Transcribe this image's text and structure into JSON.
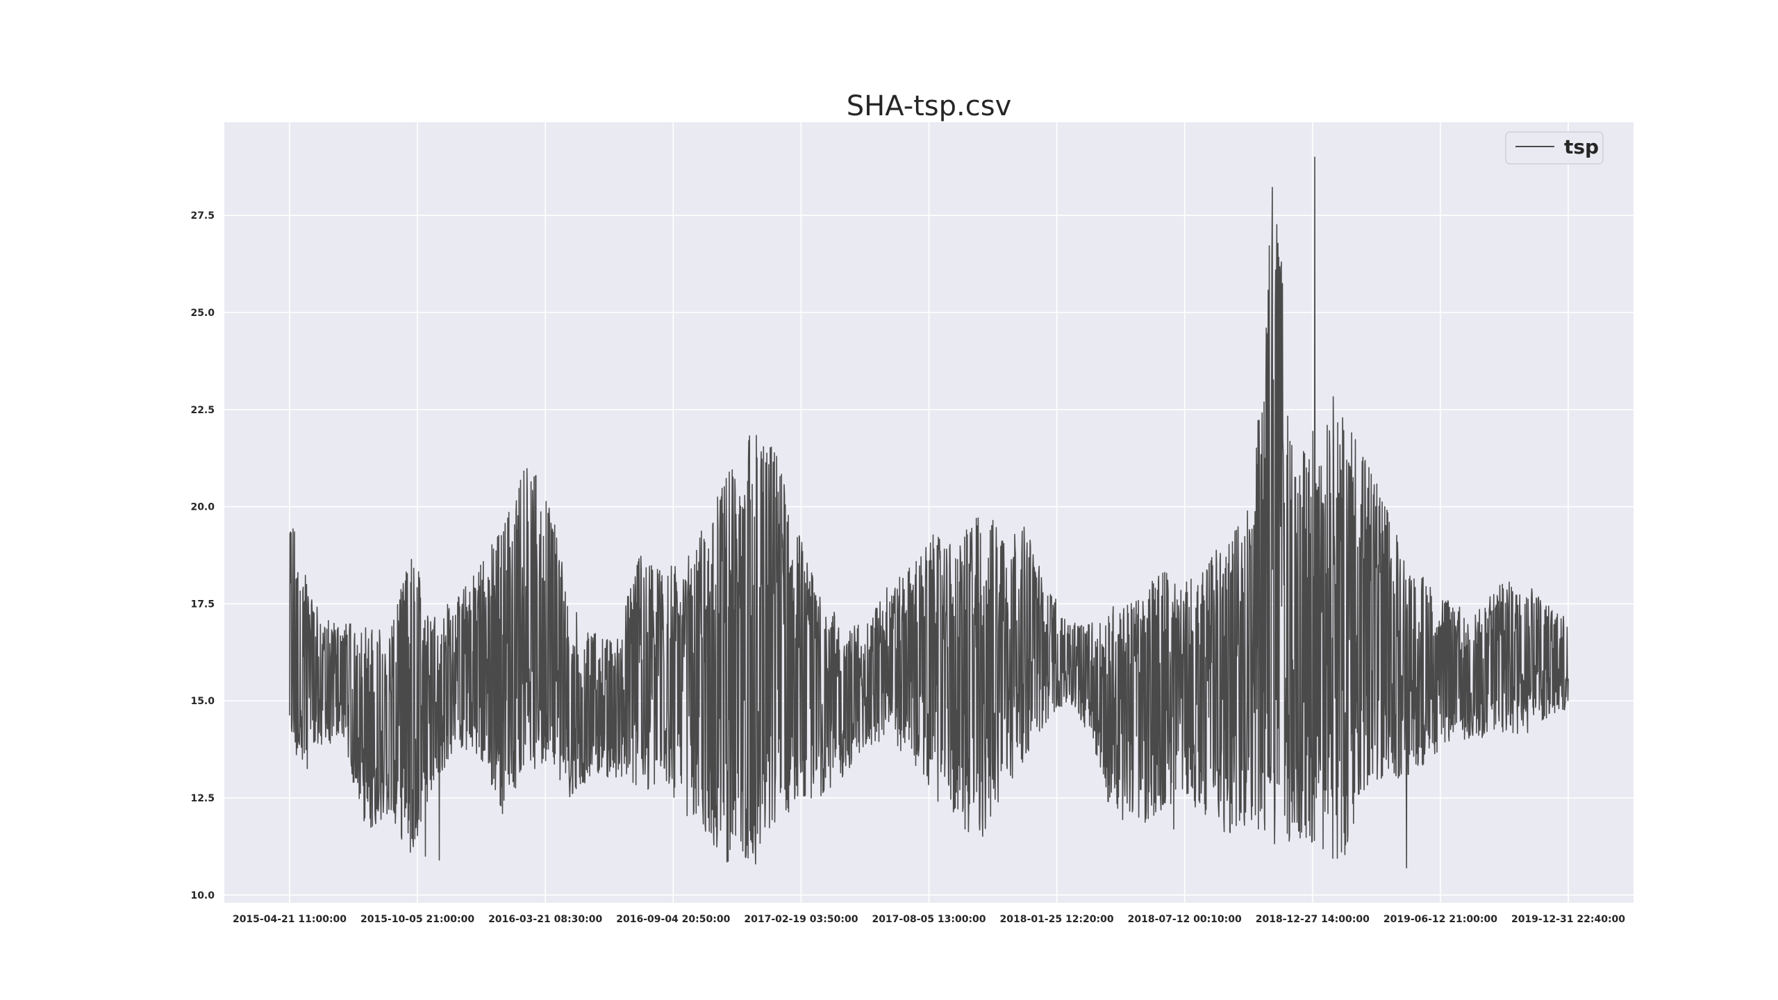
{
  "chart_data": {
    "type": "line",
    "title": "SHA-tsp.csv",
    "xlabel": "",
    "ylabel": "",
    "ylim": [
      9.8,
      29.9
    ],
    "yticks": [
      10.0,
      12.5,
      15.0,
      17.5,
      20.0,
      22.5,
      25.0,
      27.5
    ],
    "ytick_labels": [
      "10.0",
      "12.5",
      "15.0",
      "17.5",
      "20.0",
      "22.5",
      "25.0",
      "27.5"
    ],
    "xtick_labels": [
      "2015-04-21 11:00:00",
      "2015-10-05 21:00:00",
      "2016-03-21 08:30:00",
      "2016-09-04 20:50:00",
      "2017-02-19 03:50:00",
      "2017-08-05 13:00:00",
      "2018-01-25 12:20:00",
      "2018-07-12 00:10:00",
      "2018-12-27 14:00:00",
      "2019-06-12 21:00:00",
      "2019-12-31 22:40:00"
    ],
    "grid": true,
    "legend_position": "top-right",
    "series": [
      {
        "name": "tsp",
        "color": "#4a4a4a",
        "x_start": "2015-04-21",
        "x_end": "2019-12-31",
        "envelope": {
          "x": [
            "2015-04-21",
            "2015-05-10",
            "2015-06-01",
            "2015-07-01",
            "2015-08-01",
            "2015-09-01",
            "2015-10-01",
            "2015-11-01",
            "2015-12-01",
            "2016-01-01",
            "2016-02-01",
            "2016-03-01",
            "2016-04-01",
            "2016-05-01",
            "2016-06-01",
            "2016-07-01",
            "2016-08-01",
            "2016-09-01",
            "2016-10-01",
            "2016-11-01",
            "2016-12-01",
            "2017-01-01",
            "2017-02-01",
            "2017-03-01",
            "2017-04-01",
            "2017-05-01",
            "2017-06-01",
            "2017-07-01",
            "2017-08-01",
            "2017-09-01",
            "2017-10-01",
            "2017-11-01",
            "2017-12-01",
            "2018-01-01",
            "2018-02-01",
            "2018-03-01",
            "2018-04-01",
            "2018-05-01",
            "2018-06-01",
            "2018-07-01",
            "2018-08-01",
            "2018-09-01",
            "2018-10-01",
            "2018-11-01",
            "2018-12-01",
            "2019-01-01",
            "2019-02-01",
            "2019-03-01",
            "2019-04-01",
            "2019-05-01",
            "2019-06-01",
            "2019-07-01",
            "2019-08-01",
            "2019-09-01",
            "2019-10-01",
            "2019-11-01",
            "2019-12-01",
            "2019-12-31"
          ],
          "high": [
            20.0,
            18.5,
            17.2,
            17.0,
            17.0,
            16.8,
            18.8,
            17.5,
            17.6,
            18.6,
            19.5,
            21.2,
            20.5,
            17.5,
            16.8,
            16.5,
            18.8,
            18.5,
            18.5,
            19.8,
            21.0,
            22.0,
            21.5,
            19.5,
            18.0,
            17.0,
            17.0,
            18.0,
            18.5,
            19.3,
            19.0,
            20.0,
            19.5,
            19.5,
            18.0,
            17.0,
            17.0,
            17.5,
            17.6,
            18.5,
            18.0,
            18.5,
            19.5,
            20.0,
            29.0,
            21.0,
            22.7,
            23.0,
            21.5,
            20.0,
            18.5,
            18.0,
            17.5,
            17.5,
            18.0,
            18.2,
            17.5,
            17.3
          ],
          "low": [
            14.0,
            13.1,
            13.8,
            14.0,
            11.6,
            12.0,
            10.9,
            12.8,
            13.8,
            13.5,
            12.0,
            13.0,
            13.5,
            12.5,
            13.0,
            13.0,
            12.5,
            13.0,
            12.0,
            11.5,
            10.7,
            11.0,
            11.5,
            12.5,
            12.5,
            13.0,
            13.8,
            14.0,
            13.5,
            12.5,
            12.0,
            11.2,
            12.5,
            13.5,
            14.5,
            15.0,
            14.0,
            11.7,
            11.8,
            12.0,
            12.5,
            12.0,
            11.5,
            11.7,
            11.0,
            11.5,
            11.2,
            10.7,
            12.5,
            13.0,
            13.0,
            13.5,
            14.0,
            14.0,
            14.2,
            14.0,
            14.5,
            14.8
          ]
        }
      }
    ]
  }
}
